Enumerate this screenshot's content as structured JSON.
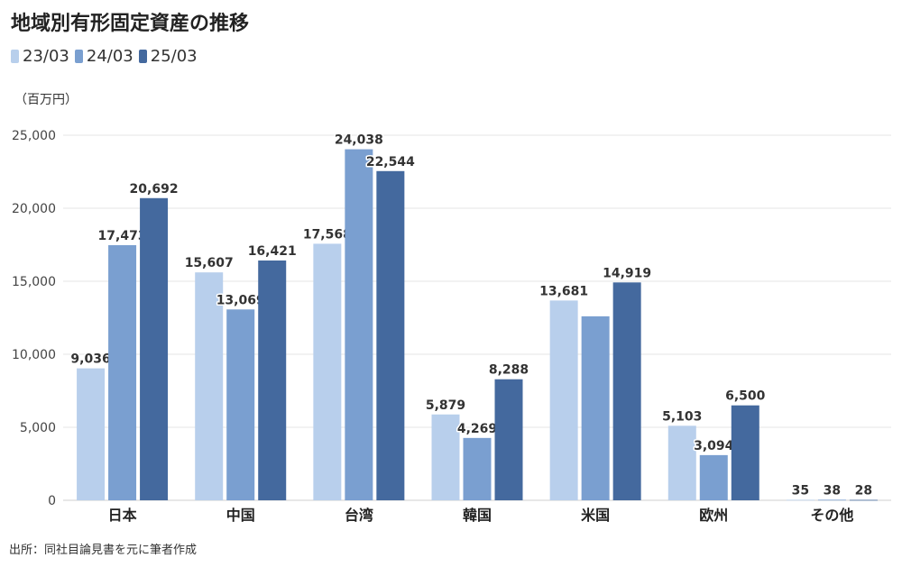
{
  "title": "地域別有形固定資産の推移",
  "unit_label": "（百万円）",
  "source": "出所：同社目論見書を元に筆者作成",
  "chart_data": {
    "type": "bar",
    "title": "地域別有形固定資産の推移",
    "xlabel": "",
    "ylabel": "（百万円）",
    "ylim": [
      0,
      25000
    ],
    "yticks": [
      0,
      5000,
      10000,
      15000,
      20000,
      25000
    ],
    "ytick_labels": [
      "0",
      "5,000",
      "10,000",
      "15,000",
      "20,000",
      "25,000"
    ],
    "grid": true,
    "legend_position": "top-left",
    "categories": [
      "日本",
      "中国",
      "台湾",
      "韓国",
      "米国",
      "欧州",
      "その他"
    ],
    "series": [
      {
        "name": "23/03",
        "color": "#b8cfec",
        "values": [
          9036,
          15607,
          17568,
          5879,
          13681,
          5103,
          35
        ],
        "labels": [
          "9,036",
          "15,607",
          "17,568",
          "5,879",
          "13,681",
          "5,103",
          "35"
        ]
      },
      {
        "name": "24/03",
        "color": "#7a9fd0",
        "values": [
          17473,
          13069,
          24038,
          4269,
          12600,
          3094,
          38
        ],
        "labels": [
          "17,473",
          "13,069",
          "24,038",
          "4,269",
          "",
          "3,094",
          "38"
        ]
      },
      {
        "name": "25/03",
        "color": "#44699e",
        "values": [
          20692,
          16421,
          22544,
          8288,
          14919,
          6500,
          28
        ],
        "labels": [
          "20,692",
          "16,421",
          "22,544",
          "8,288",
          "14,919",
          "6,500",
          "28"
        ]
      }
    ]
  }
}
